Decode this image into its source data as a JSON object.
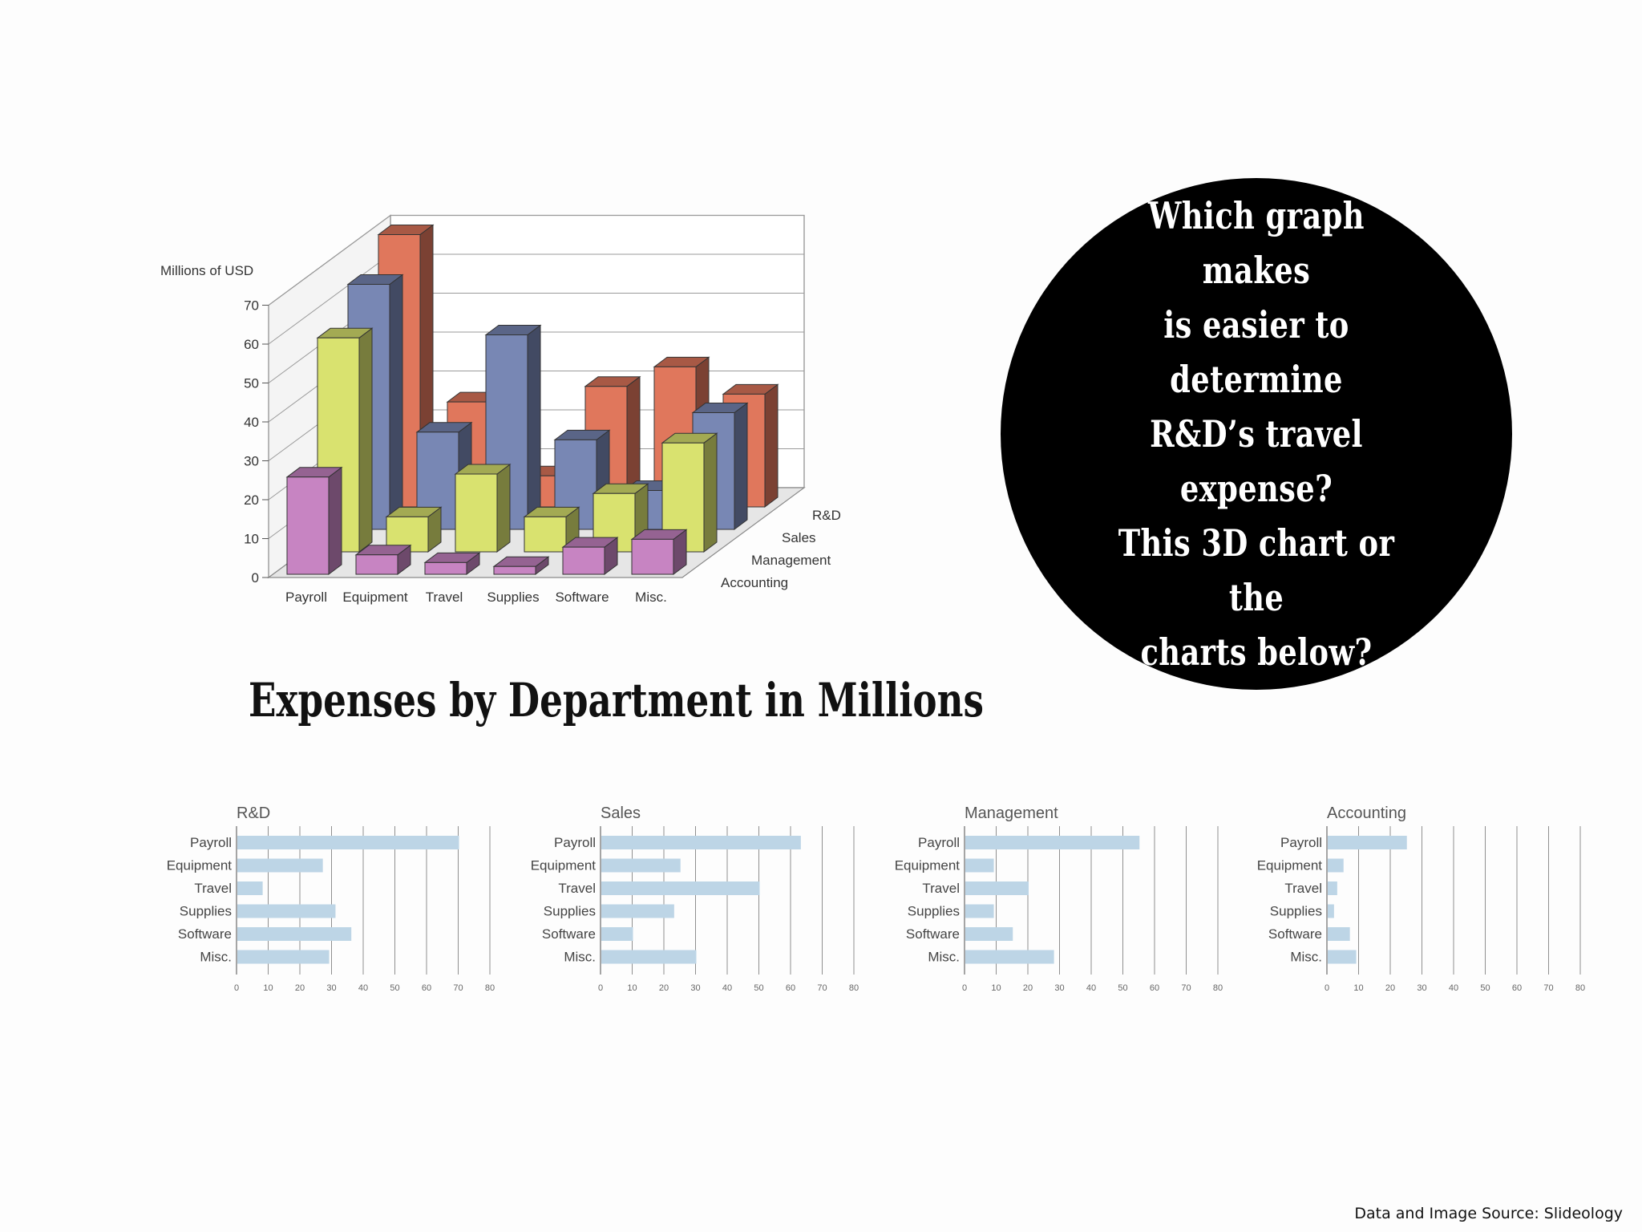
{
  "callout": {
    "lines": [
      "Which graph makes",
      "is easier to determine",
      "R&D’s travel expense?",
      "This 3D chart or the",
      "charts below?"
    ]
  },
  "section_title": "Expenses by Department in Millions",
  "footer": {
    "source": "Data and Image Source: Slideology"
  },
  "colors": {
    "rd": "#e0775c",
    "sales": "#7887b4",
    "management": "#d9e26f",
    "accounting": "#c784c2",
    "small_bar": "#bdd5e6"
  },
  "chart_data": [
    {
      "type": "bar",
      "style": "3d",
      "ylabel": "Millions of USD",
      "ylim": [
        0,
        70
      ],
      "yticks": [
        0,
        10,
        20,
        30,
        40,
        50,
        60,
        70
      ],
      "categories": [
        "Payroll",
        "Equipment",
        "Travel",
        "Supplies",
        "Software",
        "Misc."
      ],
      "series": [
        {
          "name": "R&D",
          "values": [
            70,
            27,
            8,
            31,
            36,
            29
          ]
        },
        {
          "name": "Sales",
          "values": [
            63,
            25,
            50,
            23,
            10,
            30
          ]
        },
        {
          "name": "Management",
          "values": [
            55,
            9,
            20,
            9,
            15,
            28
          ]
        },
        {
          "name": "Accounting",
          "values": [
            25,
            5,
            3,
            2,
            7,
            9
          ]
        }
      ]
    },
    {
      "type": "bar",
      "orientation": "horizontal",
      "title": "R&D",
      "categories": [
        "Payroll",
        "Equipment",
        "Travel",
        "Supplies",
        "Software",
        "Misc."
      ],
      "values": [
        70,
        27,
        8,
        31,
        36,
        29
      ],
      "xlim": [
        0,
        80
      ],
      "xticks": [
        0,
        10,
        20,
        30,
        40,
        50,
        60,
        70,
        80
      ],
      "grid": true
    },
    {
      "type": "bar",
      "orientation": "horizontal",
      "title": "Sales",
      "categories": [
        "Payroll",
        "Equipment",
        "Travel",
        "Supplies",
        "Software",
        "Misc."
      ],
      "values": [
        63,
        25,
        50,
        23,
        10,
        30
      ],
      "xlim": [
        0,
        80
      ],
      "xticks": [
        0,
        10,
        20,
        30,
        40,
        50,
        60,
        70,
        80
      ],
      "grid": true
    },
    {
      "type": "bar",
      "orientation": "horizontal",
      "title": "Management",
      "categories": [
        "Payroll",
        "Equipment",
        "Travel",
        "Supplies",
        "Software",
        "Misc."
      ],
      "values": [
        55,
        9,
        20,
        9,
        15,
        28
      ],
      "xlim": [
        0,
        80
      ],
      "xticks": [
        0,
        10,
        20,
        30,
        40,
        50,
        60,
        70,
        80
      ],
      "grid": true
    },
    {
      "type": "bar",
      "orientation": "horizontal",
      "title": "Accounting",
      "categories": [
        "Payroll",
        "Equipment",
        "Travel",
        "Supplies",
        "Software",
        "Misc."
      ],
      "values": [
        25,
        5,
        3,
        2,
        7,
        9
      ],
      "xlim": [
        0,
        80
      ],
      "xticks": [
        0,
        10,
        20,
        30,
        40,
        50,
        60,
        70,
        80
      ],
      "grid": true
    }
  ]
}
